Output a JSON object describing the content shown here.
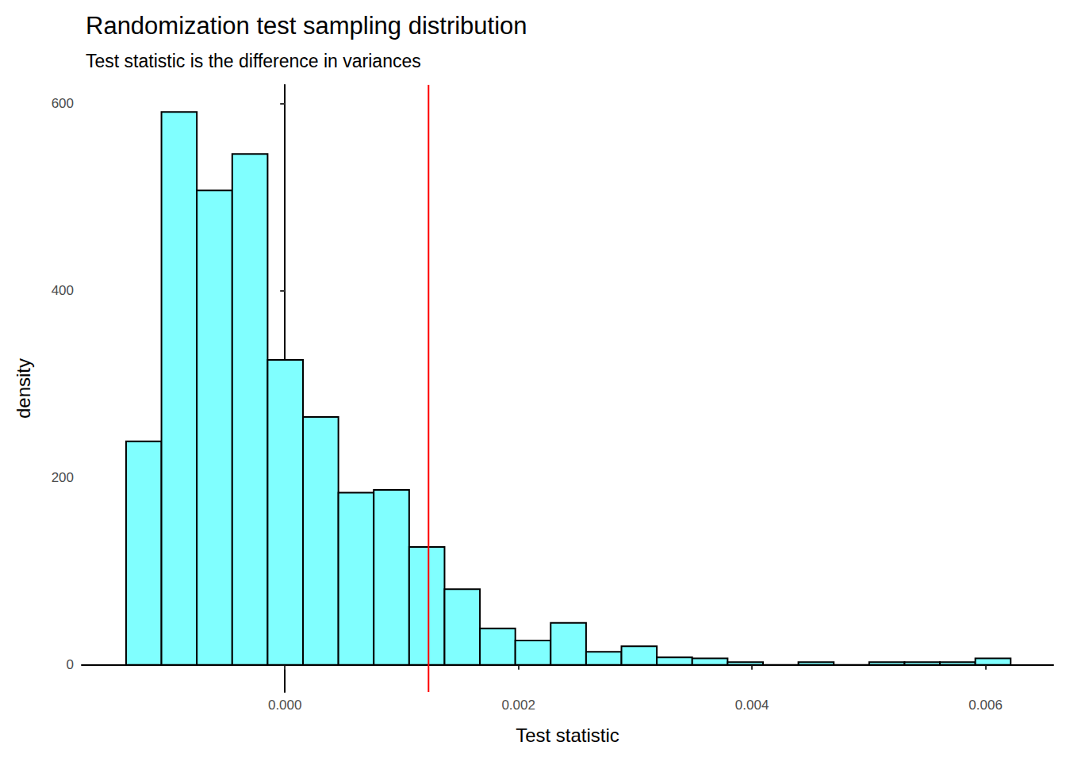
{
  "chart_data": {
    "type": "histogram",
    "title": "Randomization test sampling distribution",
    "subtitle": "Test statistic is the difference in variances",
    "x_label": "Test statistic",
    "y_label": "density",
    "bins": [
      -0.00136,
      -0.001057,
      -0.000754,
      -0.000451,
      -0.000148,
      0.000155,
      0.000458,
      0.000761,
      0.001064,
      0.001367,
      0.00167,
      0.001973,
      0.002276,
      0.002579,
      0.002882,
      0.003185,
      0.003488,
      0.003791,
      0.004094,
      0.004397,
      0.0047,
      0.005003,
      0.005306,
      0.005609,
      0.005912,
      0.006215
    ],
    "values": [
      239,
      591,
      507,
      546,
      326,
      265,
      184,
      187,
      126,
      81,
      39,
      26,
      45,
      14,
      20,
      8,
      7,
      3,
      0,
      3,
      0,
      3,
      3,
      3,
      7
    ],
    "color": "#80ffff",
    "vline": 0.00123,
    "xlim": [
      -0.00174,
      0.00658
    ],
    "xticks": [
      {
        "value": 0,
        "label": "0.000"
      },
      {
        "value": 0.002,
        "label": "0.002"
      },
      {
        "value": 0.004,
        "label": "0.004"
      },
      {
        "value": 0.006,
        "label": "0.006"
      }
    ],
    "ylim": [
      -29,
      620
    ],
    "yticks": [
      0,
      200,
      400,
      600
    ],
    "grid": false
  }
}
